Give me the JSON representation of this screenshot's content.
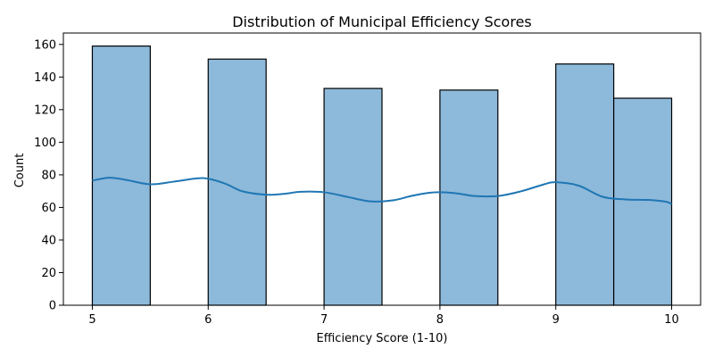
{
  "chart_data": {
    "type": "bar",
    "title": "Distribution of Municipal Efficiency Scores",
    "xlabel": "Efficiency Score (1-10)",
    "ylabel": "Count",
    "xlim": [
      4.75,
      10.25
    ],
    "ylim": [
      0,
      167
    ],
    "xticks": [
      5,
      6,
      7,
      8,
      9,
      10
    ],
    "yticks": [
      0,
      20,
      40,
      60,
      80,
      100,
      120,
      140,
      160
    ],
    "bins": [
      {
        "x0": 5.0,
        "x1": 5.5,
        "count": 159
      },
      {
        "x0": 5.5,
        "x1": 6.0,
        "count": 0
      },
      {
        "x0": 6.0,
        "x1": 6.5,
        "count": 151
      },
      {
        "x0": 6.5,
        "x1": 7.0,
        "count": 0
      },
      {
        "x0": 7.0,
        "x1": 7.5,
        "count": 133
      },
      {
        "x0": 7.5,
        "x1": 8.0,
        "count": 0
      },
      {
        "x0": 8.0,
        "x1": 8.5,
        "count": 132
      },
      {
        "x0": 8.5,
        "x1": 9.0,
        "count": 0
      },
      {
        "x0": 9.0,
        "x1": 9.5,
        "count": 148
      },
      {
        "x0": 9.5,
        "x1": 10.0,
        "count": 127
      }
    ],
    "kde": {
      "x": [
        5.0,
        5.15,
        5.3,
        5.5,
        5.7,
        5.9,
        6.0,
        6.15,
        6.3,
        6.5,
        6.65,
        6.8,
        7.0,
        7.2,
        7.4,
        7.6,
        7.75,
        7.9,
        8.0,
        8.15,
        8.3,
        8.5,
        8.7,
        8.9,
        9.0,
        9.2,
        9.4,
        9.6,
        9.8,
        9.95,
        10.0
      ],
      "y": [
        76.5,
        78.2,
        76.8,
        74.2,
        75.8,
        77.8,
        77.6,
        74.5,
        69.8,
        67.8,
        68.3,
        69.6,
        69.3,
        66.5,
        63.7,
        64.4,
        67.0,
        68.9,
        69.3,
        68.6,
        67.0,
        67.0,
        69.9,
        74.2,
        75.5,
        73.3,
        66.6,
        64.9,
        64.6,
        63.5,
        62.0
      ]
    },
    "colors": {
      "bar_fill": "#8db9da",
      "bar_edge": "#000000",
      "kde_line": "#1f77b4"
    },
    "grid": false,
    "legend": false
  }
}
